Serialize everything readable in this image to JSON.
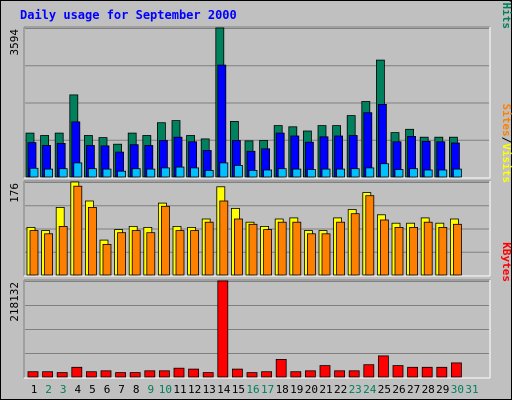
{
  "title": "Daily usage for September 2000",
  "colors": {
    "background": "#c0c0c0",
    "plot_bg": "#c0c0c0",
    "hits": "#00805c",
    "files": "#0000ff",
    "pages": "#00c0ff",
    "visits": "#ffff00",
    "sites": "#ff8000",
    "kbytes": "#ff0000",
    "title": "#0000ff",
    "weekday": "#000000",
    "weekend": "#00805c",
    "outline": "#000000"
  },
  "chart_data": [
    {
      "type": "bar",
      "panel": "hits-files-pages",
      "max_label": "3594",
      "ylim": [
        0,
        3594
      ],
      "legend": [
        {
          "label": "Pages",
          "color": "#00c0ff"
        },
        {
          "label": "/",
          "color": "#000000"
        },
        {
          "label": "Files",
          "color": "#0000ff"
        },
        {
          "label": "/",
          "color": "#000000"
        },
        {
          "label": "Hits",
          "color": "#00805c"
        }
      ],
      "categories": [
        "1",
        "2",
        "3",
        "4",
        "5",
        "6",
        "7",
        "8",
        "9",
        "10",
        "11",
        "12",
        "13",
        "14",
        "15",
        "16",
        "17",
        "18",
        "19",
        "20",
        "21",
        "22",
        "23",
        "24",
        "25",
        "26",
        "27",
        "28",
        "29",
        "30",
        "31"
      ],
      "series": [
        {
          "name": "Hits",
          "color": "#00805c",
          "values": [
            1060,
            1000,
            1060,
            1980,
            1000,
            950,
            790,
            1060,
            1000,
            1310,
            1360,
            1000,
            920,
            3594,
            1340,
            870,
            880,
            1240,
            1210,
            1110,
            1240,
            1240,
            1480,
            1820,
            2820,
            1070,
            1150,
            960,
            960,
            960,
            0
          ]
        },
        {
          "name": "Files",
          "color": "#0000ff",
          "values": [
            830,
            760,
            810,
            1330,
            760,
            750,
            600,
            780,
            760,
            880,
            960,
            850,
            640,
            2700,
            880,
            620,
            680,
            1060,
            990,
            840,
            970,
            990,
            1000,
            1550,
            1750,
            850,
            980,
            860,
            850,
            820,
            0
          ]
        },
        {
          "name": "Pages",
          "color": "#00c0ff",
          "values": [
            210,
            190,
            200,
            340,
            200,
            190,
            140,
            200,
            190,
            220,
            240,
            220,
            160,
            340,
            280,
            160,
            170,
            200,
            190,
            180,
            190,
            190,
            200,
            220,
            320,
            180,
            200,
            170,
            170,
            190,
            0
          ]
        }
      ]
    },
    {
      "type": "bar",
      "panel": "visits-sites",
      "max_label": "176",
      "ylim": [
        0,
        176
      ],
      "legend": [
        {
          "label": "Sites",
          "color": "#ff8000"
        },
        {
          "label": "/",
          "color": "#000000"
        },
        {
          "label": "Visits",
          "color": "#ffff00"
        }
      ],
      "categories": [
        "1",
        "2",
        "3",
        "4",
        "5",
        "6",
        "7",
        "8",
        "9",
        "10",
        "11",
        "12",
        "13",
        "14",
        "15",
        "16",
        "17",
        "18",
        "19",
        "20",
        "21",
        "22",
        "23",
        "24",
        "25",
        "26",
        "27",
        "28",
        "29",
        "30",
        "31"
      ],
      "series": [
        {
          "name": "Visits",
          "color": "#ffff00",
          "values": [
            90,
            84,
            128,
            176,
            140,
            66,
            86,
            92,
            90,
            136,
            92,
            90,
            106,
            167,
            126,
            100,
            92,
            106,
            108,
            84,
            84,
            108,
            124,
            156,
            114,
            98,
            98,
            108,
            98,
            106,
            0
          ]
        },
        {
          "name": "Sites",
          "color": "#ff8000",
          "values": [
            84,
            78,
            92,
            168,
            128,
            58,
            80,
            84,
            80,
            130,
            84,
            84,
            100,
            140,
            106,
            96,
            86,
            100,
            100,
            78,
            78,
            100,
            116,
            150,
            104,
            90,
            90,
            100,
            90,
            96,
            0
          ]
        }
      ]
    },
    {
      "type": "bar",
      "panel": "kbytes",
      "max_label": "218132",
      "ylim": [
        0,
        218132
      ],
      "legend": [
        {
          "label": "KBytes",
          "color": "#ff0000"
        }
      ],
      "categories": [
        "1",
        "2",
        "3",
        "4",
        "5",
        "6",
        "7",
        "8",
        "9",
        "10",
        "11",
        "12",
        "13",
        "14",
        "15",
        "16",
        "17",
        "18",
        "19",
        "20",
        "21",
        "22",
        "23",
        "24",
        "25",
        "26",
        "27",
        "28",
        "29",
        "30",
        "31"
      ],
      "series": [
        {
          "name": "KBytes",
          "color": "#ff0000",
          "values": [
            12000,
            12000,
            10000,
            22000,
            12000,
            14000,
            10000,
            10000,
            14000,
            14000,
            20000,
            18000,
            10000,
            218132,
            18000,
            10000,
            12000,
            40000,
            12000,
            14000,
            26000,
            14000,
            14000,
            28000,
            48000,
            26000,
            22000,
            22000,
            22000,
            32000,
            0
          ]
        }
      ]
    }
  ],
  "x_axis": {
    "days": [
      "1",
      "2",
      "3",
      "4",
      "5",
      "6",
      "7",
      "8",
      "9",
      "10",
      "11",
      "12",
      "13",
      "14",
      "15",
      "16",
      "17",
      "18",
      "19",
      "20",
      "21",
      "22",
      "23",
      "24",
      "25",
      "26",
      "27",
      "28",
      "29",
      "30",
      "31"
    ],
    "weekend": [
      false,
      true,
      true,
      false,
      false,
      false,
      false,
      false,
      true,
      true,
      false,
      false,
      false,
      false,
      false,
      true,
      true,
      false,
      false,
      false,
      false,
      false,
      true,
      true,
      false,
      false,
      false,
      false,
      false,
      true,
      true
    ]
  }
}
